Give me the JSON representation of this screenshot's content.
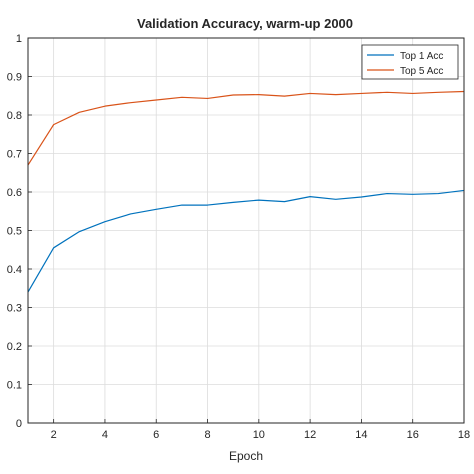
{
  "chart_data": {
    "type": "line",
    "title": "Validation Accuracy, warm-up 2000",
    "xlabel": "Epoch",
    "ylabel": "",
    "xlim": [
      1,
      18
    ],
    "ylim": [
      0,
      1
    ],
    "xticks": [
      2,
      4,
      6,
      8,
      10,
      12,
      14,
      16,
      18
    ],
    "yticks": [
      0,
      0.1,
      0.2,
      0.3,
      0.4,
      0.5,
      0.6,
      0.7,
      0.8,
      0.9,
      1
    ],
    "ytick_labels": [
      "0",
      "0.1",
      "0.2",
      "0.3",
      "0.4",
      "0.5",
      "0.6",
      "0.7",
      "0.8",
      "0.9",
      "1"
    ],
    "grid": true,
    "legend_position": "top-right",
    "x": [
      1,
      2,
      3,
      4,
      5,
      6,
      7,
      8,
      9,
      10,
      11,
      12,
      13,
      14,
      15,
      16,
      17,
      18
    ],
    "series": [
      {
        "name": "Top 1 Acc",
        "color": "#0072BD",
        "values": [
          0.34,
          0.455,
          0.497,
          0.523,
          0.543,
          0.555,
          0.566,
          0.566,
          0.573,
          0.579,
          0.575,
          0.588,
          0.581,
          0.587,
          0.596,
          0.594,
          0.596,
          0.604
        ]
      },
      {
        "name": "Top 5 Acc",
        "color": "#D95319",
        "values": [
          0.67,
          0.775,
          0.807,
          0.823,
          0.832,
          0.839,
          0.846,
          0.843,
          0.852,
          0.853,
          0.849,
          0.856,
          0.853,
          0.856,
          0.859,
          0.856,
          0.859,
          0.861
        ]
      }
    ]
  }
}
